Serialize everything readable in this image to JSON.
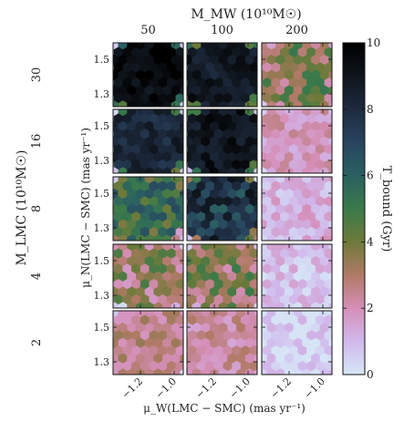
{
  "chart_data": {
    "type": "heatmap",
    "title": "",
    "top_label": "M_MW (10¹⁰M☉)",
    "left_label": "M_LMC (10¹⁰M☉)",
    "xlabel": "μ_W(LMC − SMC) (mas yr⁻¹)",
    "ylabel": "μ_N(LMC − SMC) (mas yr⁻¹)",
    "colorbar_label": "T_bound (Gyr)",
    "columns": [
      "50",
      "100",
      "200"
    ],
    "rows": [
      "30",
      "16",
      "8",
      "4",
      "2"
    ],
    "x_ticks": [
      "−1.2",
      "−1.0"
    ],
    "y_ticks": [
      "1.5",
      "1.3"
    ],
    "colorbar_ticks": [
      "0",
      "2",
      "4",
      "6",
      "8",
      "10"
    ],
    "clim": [
      0,
      10
    ],
    "colormap": "cubehelix",
    "mean_bound_time_gyr": [
      [
        9.5,
        8.8,
        3.6
      ],
      [
        8.2,
        9.0,
        1.8
      ],
      [
        5.2,
        7.6,
        1.2
      ],
      [
        3.2,
        3.6,
        0.8
      ],
      [
        2.6,
        2.2,
        0.4
      ]
    ]
  }
}
